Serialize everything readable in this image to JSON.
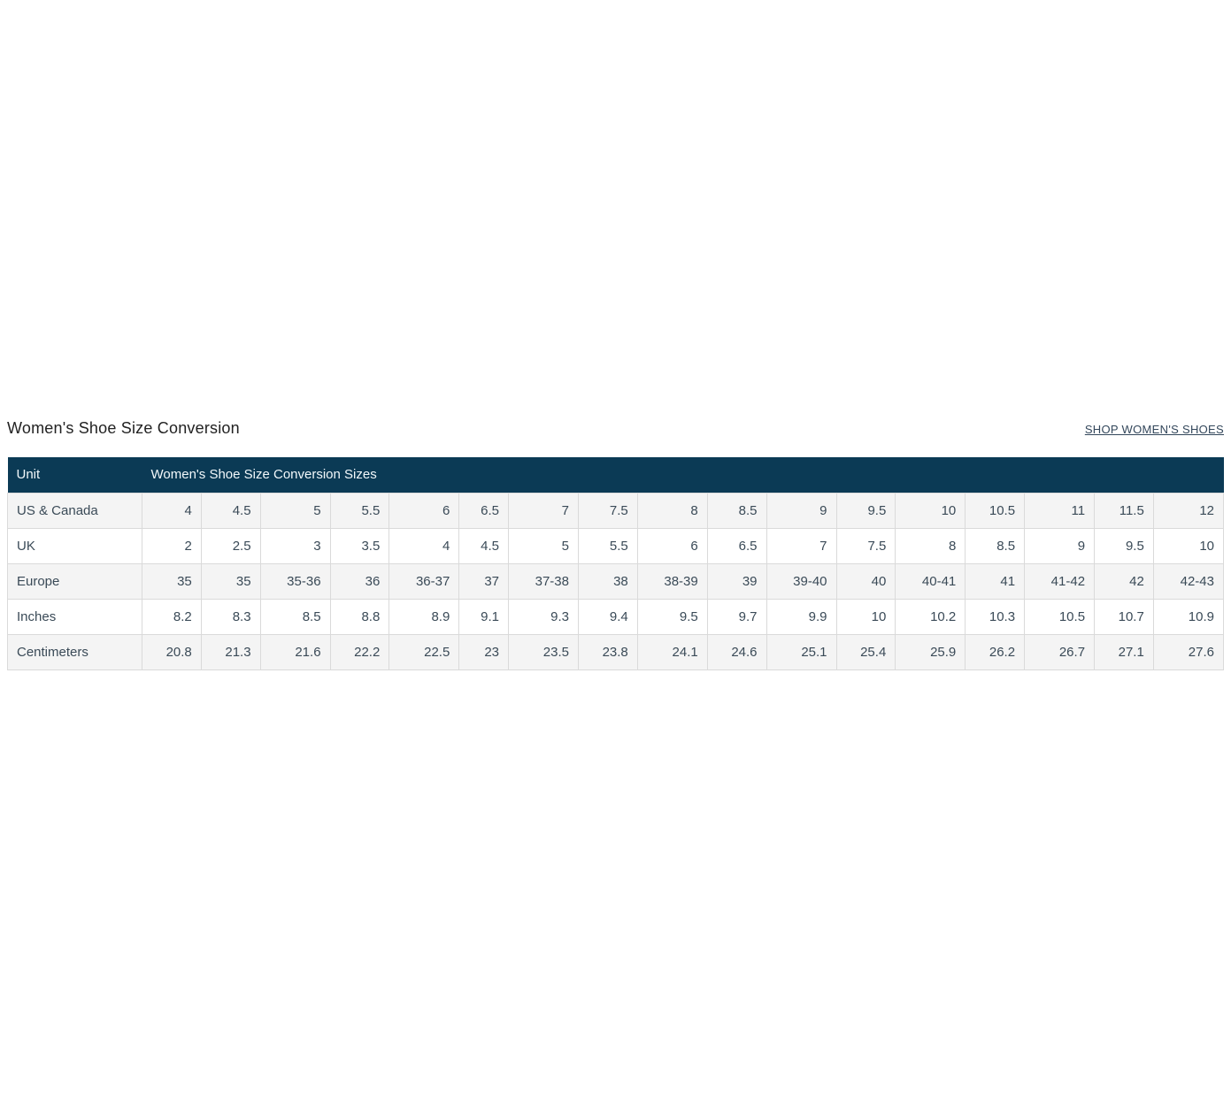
{
  "page": {
    "title": "Women's Shoe Size Conversion",
    "shop_link": "SHOP WOMEN'S SHOES"
  },
  "table": {
    "header": {
      "unit": "Unit",
      "sizes": "Women's Shoe Size Conversion Sizes"
    },
    "rows": [
      {
        "label": "US & Canada",
        "values": [
          "4",
          "4.5",
          "5",
          "5.5",
          "6",
          "6.5",
          "7",
          "7.5",
          "8",
          "8.5",
          "9",
          "9.5",
          "10",
          "10.5",
          "11",
          "11.5",
          "12"
        ]
      },
      {
        "label": "UK",
        "values": [
          "2",
          "2.5",
          "3",
          "3.5",
          "4",
          "4.5",
          "5",
          "5.5",
          "6",
          "6.5",
          "7",
          "7.5",
          "8",
          "8.5",
          "9",
          "9.5",
          "10"
        ]
      },
      {
        "label": "Europe",
        "values": [
          "35",
          "35",
          "35-36",
          "36",
          "36-37",
          "37",
          "37-38",
          "38",
          "38-39",
          "39",
          "39-40",
          "40",
          "40-41",
          "41",
          "41-42",
          "42",
          "42-43"
        ]
      },
      {
        "label": "Inches",
        "values": [
          "8.2",
          "8.3",
          "8.5",
          "8.8",
          "8.9",
          "9.1",
          "9.3",
          "9.4",
          "9.5",
          "9.7",
          "9.9",
          "10",
          "10.2",
          "10.3",
          "10.5",
          "10.7",
          "10.9"
        ]
      },
      {
        "label": "Centimeters",
        "values": [
          "20.8",
          "21.3",
          "21.6",
          "22.2",
          "22.5",
          "23",
          "23.5",
          "23.8",
          "24.1",
          "24.6",
          "25.1",
          "25.4",
          "25.9",
          "26.2",
          "26.7",
          "27.1",
          "27.6"
        ]
      }
    ]
  },
  "colors": {
    "header_bg": "#0b3a55",
    "header_text": "#f2f8fb",
    "row_alt_bg": "#f4f4f4",
    "cell_border": "#dadada",
    "cell_text": "#3a4a57",
    "title_text": "#222222",
    "link_text": "#33475b"
  }
}
